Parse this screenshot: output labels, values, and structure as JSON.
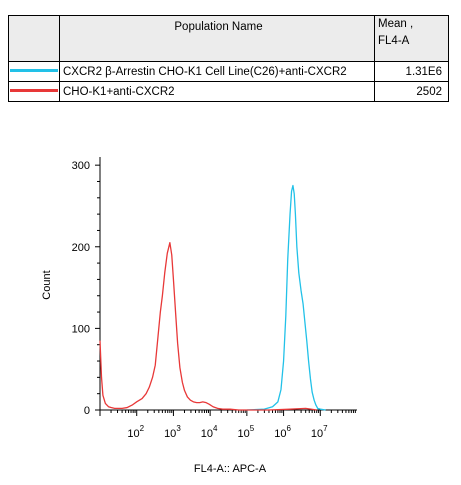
{
  "legend": {
    "header_name": "Population Name",
    "header_mean_line1": "Mean ,",
    "header_mean_line2": "FL4-A",
    "rows": [
      {
        "color": "#22c1e8",
        "name": "CXCR2 β-Arrestin CHO-K1 Cell Line(C26)+anti-CXCR2",
        "mean": "1.31E6"
      },
      {
        "color": "#e83838",
        "name": "CHO-K1+anti-CXCR2",
        "mean": "2502"
      }
    ]
  },
  "chart_data": {
    "type": "line",
    "xlabel": "FL4-A:: APC-A",
    "ylabel": "Count",
    "x_scale": "log",
    "xlim": [
      10,
      100000000
    ],
    "ylim": [
      0,
      310
    ],
    "y_ticks": [
      "0",
      "100",
      "200",
      "300"
    ],
    "x_ticks": [
      {
        "base": "10",
        "exp": "2",
        "value": 100
      },
      {
        "base": "10",
        "exp": "3",
        "value": 1000
      },
      {
        "base": "10",
        "exp": "4",
        "value": 10000
      },
      {
        "base": "10",
        "exp": "5",
        "value": 100000
      },
      {
        "base": "10",
        "exp": "6",
        "value": 1000000
      },
      {
        "base": "10",
        "exp": "7",
        "value": 10000000
      }
    ],
    "series": [
      {
        "name": "CXCR2 β-Arrestin CHO-K1 Cell Line(C26)+anti-CXCR2",
        "color": "#22c1e8",
        "x": [
          100000,
          300000,
          500000,
          700000,
          850000,
          1000000,
          1150000,
          1300000,
          1500000,
          1650000,
          1800000,
          1950000,
          2100000,
          2300000,
          2600000,
          3000000,
          3400000,
          3800000,
          4300000,
          4800000,
          5400000,
          6000000,
          6800000,
          7600000,
          8500000,
          10000000,
          14000000
        ],
        "y": [
          0,
          1,
          4,
          10,
          25,
          60,
          115,
          185,
          240,
          268,
          275,
          265,
          240,
          200,
          168,
          146,
          130,
          108,
          84,
          60,
          38,
          22,
          12,
          6,
          2,
          1,
          0
        ]
      },
      {
        "name": "CHO-K1+anti-CXCR2",
        "color": "#e83838",
        "x": [
          10,
          11,
          12,
          14,
          17,
          20,
          25,
          30,
          40,
          55,
          75,
          100,
          140,
          180,
          220,
          270,
          320,
          380,
          440,
          500,
          580,
          680,
          800,
          900,
          1000,
          1150,
          1300,
          1500,
          1750,
          2000,
          2400,
          2900,
          3500,
          4300,
          5200,
          6300,
          7800,
          9500,
          12000,
          16000,
          22000,
          35000,
          60000,
          120000,
          400000,
          1500000,
          4000000,
          8000000
        ],
        "y": [
          85,
          40,
          18,
          8,
          4,
          3,
          2,
          2,
          2,
          3,
          6,
          10,
          14,
          20,
          28,
          40,
          55,
          90,
          120,
          140,
          168,
          192,
          205,
          190,
          160,
          118,
          82,
          52,
          34,
          24,
          16,
          12,
          10,
          9,
          9,
          10,
          9,
          7,
          4,
          2,
          1,
          1,
          0,
          0,
          0,
          1,
          2,
          0
        ]
      }
    ]
  }
}
